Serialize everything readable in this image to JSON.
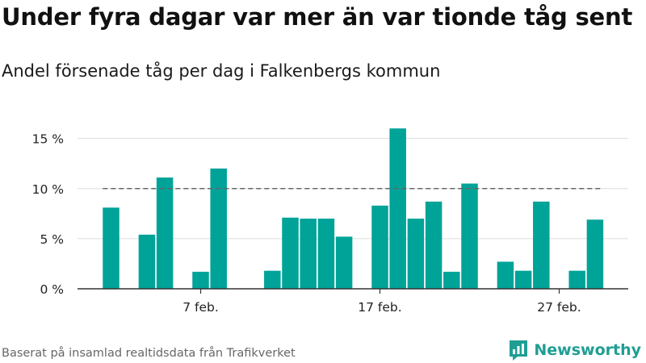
{
  "title": "Under fyra dagar var mer än var tionde tåg sent",
  "subtitle": "Andel försenade tåg per dag i Falkenbergs kommun",
  "footer": {
    "source": "Baserat på insamlad realtidsdata från Trafikverket",
    "brand_name": "Newsworthy"
  },
  "colors": {
    "bar": "#00a398",
    "reference_line": "#666666",
    "grid": "#dddddd",
    "axis": "#333333",
    "brand": "#1f9e93"
  },
  "chart_data": {
    "type": "bar",
    "title": "Under fyra dagar var mer än var tionde tåg sent",
    "subtitle": "Andel försenade tåg per dag i Falkenbergs kommun",
    "xlabel": "",
    "ylabel": "",
    "x_unit": "day of February",
    "x": [
      2,
      3,
      4,
      5,
      6,
      7,
      8,
      9,
      10,
      11,
      12,
      13,
      14,
      15,
      16,
      17,
      18,
      19,
      20,
      21,
      22,
      23,
      24,
      25,
      26,
      27,
      28,
      29
    ],
    "values": [
      8.1,
      0,
      5.4,
      11.1,
      0,
      1.7,
      12.0,
      0,
      0,
      1.8,
      7.1,
      7.0,
      7.0,
      5.2,
      0,
      8.3,
      16.0,
      7.0,
      8.7,
      1.7,
      10.5,
      0,
      2.7,
      1.8,
      8.7,
      0,
      1.8,
      6.9
    ],
    "ylim": [
      0,
      16.5
    ],
    "yticks": [
      0,
      5,
      10,
      15
    ],
    "ytick_labels": [
      "0 %",
      "5 %",
      "10 %",
      "15 %"
    ],
    "xticks": [
      7,
      17,
      27
    ],
    "xtick_labels": [
      "7 feb.",
      "17 feb.",
      "27 feb."
    ],
    "reference_line": {
      "value": 10,
      "from_x": 2,
      "to_x": 29,
      "style": "dashed"
    },
    "grid": true,
    "legend": "none"
  }
}
